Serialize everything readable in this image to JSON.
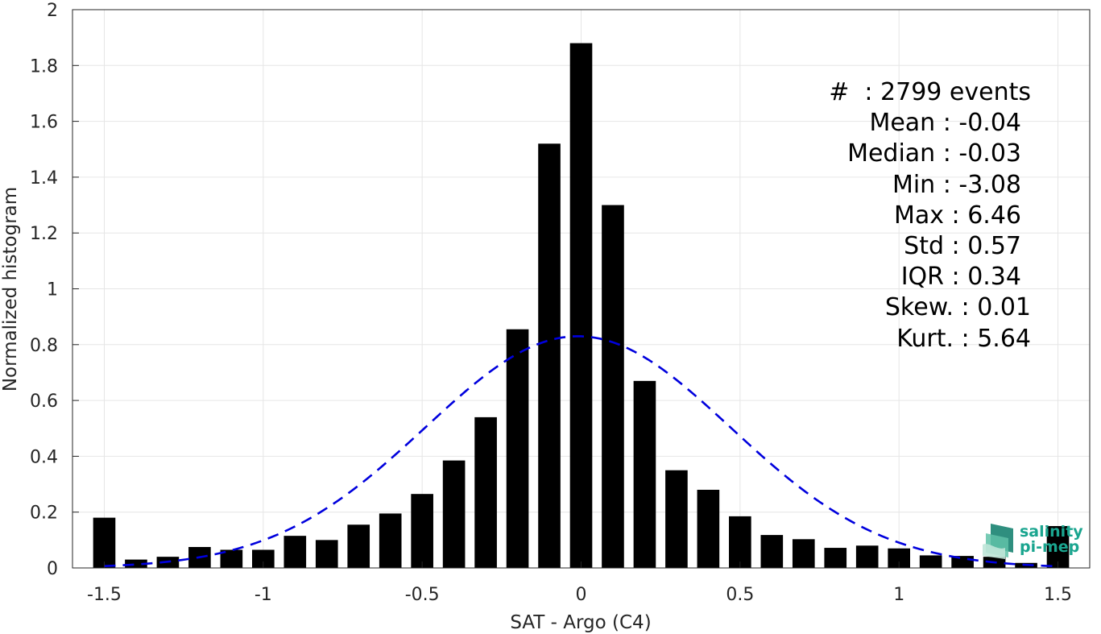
{
  "chart_data": {
    "type": "bar",
    "xlabel": "SAT - Argo (C4)",
    "ylabel": "Normalized histogram",
    "xlim": [
      -1.6,
      1.6
    ],
    "ylim": [
      0,
      2
    ],
    "xticks": [
      -1.5,
      -1,
      -0.5,
      0,
      0.5,
      1,
      1.5
    ],
    "xtick_labels": [
      "-1.5",
      "-1",
      "-0.5",
      "0",
      "0.5",
      "1",
      "1.5"
    ],
    "yticks": [
      0,
      0.2,
      0.4,
      0.6,
      0.8,
      1,
      1.2,
      1.4,
      1.6,
      1.8,
      2
    ],
    "ytick_labels": [
      "0",
      "0.2",
      "0.4",
      "0.6",
      "0.8",
      "1",
      "1.2",
      "1.4",
      "1.6",
      "1.8",
      "2"
    ],
    "grid": true,
    "bar_width": 0.07,
    "bar_color": "#000000",
    "x": [
      -1.5,
      -1.4,
      -1.3,
      -1.2,
      -1.1,
      -1.0,
      -0.9,
      -0.8,
      -0.7,
      -0.6,
      -0.5,
      -0.4,
      -0.3,
      -0.2,
      -0.1,
      0.0,
      0.1,
      0.2,
      0.3,
      0.4,
      0.5,
      0.6,
      0.7,
      0.8,
      0.9,
      1.0,
      1.1,
      1.2,
      1.3,
      1.4,
      1.5
    ],
    "values": [
      0.18,
      0.03,
      0.04,
      0.075,
      0.065,
      0.065,
      0.115,
      0.1,
      0.155,
      0.195,
      0.265,
      0.385,
      0.54,
      0.855,
      1.52,
      1.88,
      1.3,
      0.67,
      0.35,
      0.28,
      0.185,
      0.118,
      0.103,
      0.072,
      0.08,
      0.07,
      0.045,
      0.043,
      0.04,
      0.018,
      0.15
    ],
    "fit_curve": {
      "style": "dashed",
      "color": "#0000dd",
      "mean": -0.01,
      "std": 0.48,
      "peak": 0.83,
      "x_range": [
        -1.5,
        1.5
      ]
    }
  },
  "stats": {
    "events": "#  : 2799 events",
    "mean": "Mean : -0.04",
    "median": "Median : -0.03",
    "min": "Min : -3.08",
    "max": "Max : 6.46",
    "std": "Std : 0.57",
    "iqr": "IQR : 0.34",
    "skew": "Skew. : 0.01",
    "kurt": "Kurt. : 5.64"
  },
  "logo": {
    "line1": "salinity",
    "line2": "pi-mep",
    "color": "#1aa58f"
  }
}
